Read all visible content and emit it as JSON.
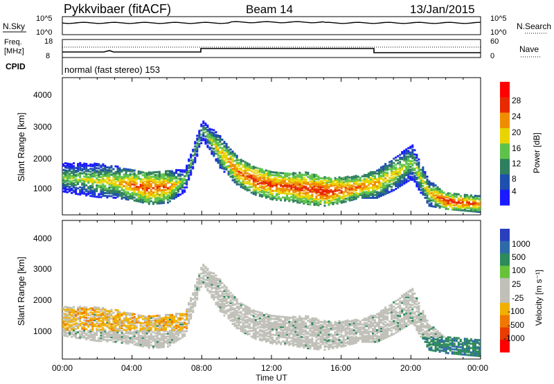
{
  "header": {
    "title": "Pykkvibaer (fitACF)",
    "beam": "Beam 14",
    "date": "13/Jan/2015"
  },
  "sky_panel": {
    "left_label": "N.Sky",
    "right_label": "N.Search",
    "left_ticks": [
      "10^5",
      "10^0"
    ],
    "right_ticks": [
      "10^5",
      "10^0"
    ]
  },
  "freq_panel": {
    "left_label_line1": "Freq.",
    "left_label_line2": "[MHz]",
    "right_label": "Nave",
    "left_ticks": [
      "18",
      "8"
    ],
    "right_ticks": [
      "60",
      "0"
    ]
  },
  "cpid": {
    "label": "CPID",
    "value": "normal (fast stereo) 153"
  },
  "x_axis": {
    "label": "Time UT",
    "ticks": [
      "00:00",
      "04:00",
      "08:00",
      "12:00",
      "16:00",
      "20:00",
      "00:00"
    ]
  },
  "power_panel": {
    "ylabel": "Slant Range [km]",
    "yticks": [
      "4000",
      "3000",
      "2000",
      "1000"
    ],
    "colorbar_label": "Power [dB]",
    "colorbar_ticks": [
      "28",
      "24",
      "20",
      "16",
      "12",
      "8",
      "4"
    ],
    "colors": [
      "#1a1aff",
      "#1f4fae",
      "#2f7f5f",
      "#5ec24a",
      "#e8d400",
      "#f08c00",
      "#e82a00",
      "#ff0000"
    ]
  },
  "velocity_panel": {
    "ylabel": "Slant Range [km]",
    "yticks": [
      "4000",
      "3000",
      "2000",
      "1000"
    ],
    "colorbar_label": "Velocity [m s⁻¹]",
    "colorbar_ticks": [
      "1000",
      "500",
      "100",
      "25",
      "-25",
      "-100",
      "-500",
      "-1000"
    ],
    "colors": [
      "#2a3fbf",
      "#2e6aa8",
      "#2d8a5a",
      "#66c23a",
      "#c0c0b8",
      "#c0c0b8",
      "#f0b000",
      "#f07800",
      "#e83c00",
      "#ff0000"
    ]
  },
  "chart_data": {
    "type": "heatmap",
    "x_range_hours": [
      0,
      24
    ],
    "y_range_km": [
      180,
      4500
    ],
    "power_band_km": [
      [
        0,
        1400,
        900,
        16
      ],
      [
        1,
        1350,
        1000,
        16
      ],
      [
        2,
        1300,
        1050,
        18
      ],
      [
        3,
        1250,
        1000,
        20
      ],
      [
        4,
        1150,
        950,
        24
      ],
      [
        5,
        1050,
        1000,
        26
      ],
      [
        6,
        1100,
        1000,
        24
      ],
      [
        7,
        1300,
        700,
        14
      ],
      [
        8,
        2900,
        600,
        14
      ],
      [
        9,
        2200,
        1000,
        20
      ],
      [
        10,
        1600,
        900,
        24
      ],
      [
        11,
        1300,
        900,
        26
      ],
      [
        12,
        1150,
        900,
        26
      ],
      [
        13,
        1100,
        900,
        26
      ],
      [
        14,
        1050,
        1000,
        26
      ],
      [
        15,
        950,
        900,
        28
      ],
      [
        16,
        1000,
        800,
        26
      ],
      [
        17,
        1100,
        700,
        24
      ],
      [
        18,
        1200,
        900,
        22
      ],
      [
        19,
        1500,
        1000,
        20
      ],
      [
        20,
        1900,
        1100,
        16
      ],
      [
        21,
        900,
        800,
        20
      ],
      [
        22,
        650,
        500,
        28
      ],
      [
        23,
        600,
        500,
        26
      ]
    ]
  }
}
